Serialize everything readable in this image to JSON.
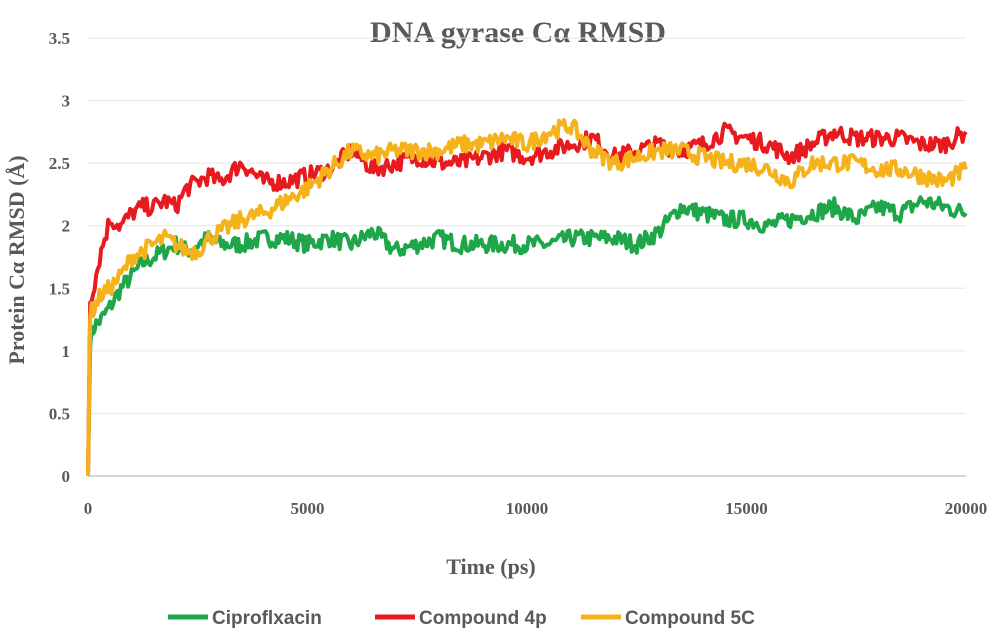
{
  "chart_data": {
    "type": "line",
    "title": "DNA gyrase Cα RMSD",
    "xlabel": "Time (ps)",
    "ylabel": "Protein Cα RMSD (Å)",
    "xlim": [
      0,
      20000
    ],
    "ylim": [
      0,
      3.5
    ],
    "x_ticks": [
      "0",
      "5000",
      "10000",
      "15000",
      "20000"
    ],
    "y_ticks": [
      "0",
      "0.5",
      "1",
      "1.5",
      "2",
      "2.5",
      "3",
      "3.5"
    ],
    "grid": "horizontal",
    "legend_position": "bottom",
    "x": [
      0,
      50,
      150,
      300,
      500,
      750,
      1000,
      1250,
      1500,
      1750,
      2000,
      2250,
      2500,
      2750,
      3000,
      3500,
      4000,
      4500,
      5000,
      5500,
      6000,
      6500,
      7000,
      7500,
      8000,
      8500,
      9000,
      9500,
      10000,
      10500,
      11000,
      11500,
      12000,
      12500,
      13000,
      13500,
      14000,
      14500,
      15000,
      15500,
      16000,
      16500,
      17000,
      17500,
      18000,
      18500,
      19000,
      19500,
      20000
    ],
    "series": [
      {
        "name": "Ciproflxacin",
        "color": "#1fa64a",
        "values": [
          0.0,
          1.1,
          1.2,
          1.25,
          1.35,
          1.5,
          1.6,
          1.7,
          1.75,
          1.8,
          1.85,
          1.8,
          1.85,
          1.9,
          1.85,
          1.85,
          1.9,
          1.9,
          1.85,
          1.9,
          1.85,
          1.95,
          1.8,
          1.85,
          1.9,
          1.85,
          1.85,
          1.85,
          1.85,
          1.85,
          1.9,
          1.9,
          1.9,
          1.85,
          1.95,
          2.15,
          2.1,
          2.05,
          2.05,
          2.0,
          2.05,
          2.1,
          2.15,
          2.05,
          2.15,
          2.1,
          2.2,
          2.15,
          2.1
        ]
      },
      {
        "name": "Compound 4p",
        "color": "#e8191f",
        "values": [
          0.0,
          1.4,
          1.55,
          1.8,
          2.05,
          2.0,
          2.1,
          2.15,
          2.15,
          2.2,
          2.15,
          2.3,
          2.35,
          2.4,
          2.35,
          2.5,
          2.35,
          2.35,
          2.4,
          2.45,
          2.6,
          2.45,
          2.5,
          2.55,
          2.5,
          2.5,
          2.55,
          2.6,
          2.55,
          2.6,
          2.65,
          2.7,
          2.55,
          2.6,
          2.65,
          2.6,
          2.65,
          2.75,
          2.7,
          2.65,
          2.55,
          2.65,
          2.75,
          2.7,
          2.7,
          2.7,
          2.65,
          2.65,
          2.75
        ]
      },
      {
        "name": "Compound 5C",
        "color": "#f5b21a",
        "values": [
          0.0,
          1.3,
          1.35,
          1.45,
          1.5,
          1.6,
          1.75,
          1.8,
          1.85,
          1.9,
          1.85,
          1.8,
          1.8,
          1.9,
          1.95,
          2.05,
          2.1,
          2.2,
          2.3,
          2.45,
          2.6,
          2.55,
          2.6,
          2.6,
          2.6,
          2.65,
          2.65,
          2.7,
          2.65,
          2.75,
          2.8,
          2.6,
          2.5,
          2.55,
          2.6,
          2.6,
          2.55,
          2.5,
          2.5,
          2.45,
          2.35,
          2.5,
          2.5,
          2.5,
          2.45,
          2.45,
          2.4,
          2.35,
          2.45
        ]
      }
    ]
  }
}
